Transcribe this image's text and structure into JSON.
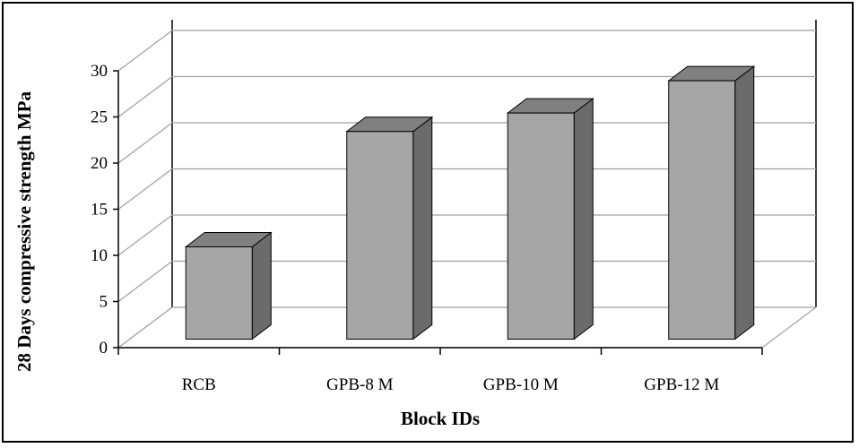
{
  "chart_data": {
    "type": "bar",
    "style": "3d-column",
    "categories": [
      "RCB",
      "GPB-8 M",
      "GPB-10 M",
      "GPB-12 M"
    ],
    "values": [
      10,
      22.5,
      24.5,
      28
    ],
    "xlabel": "Block IDs",
    "ylabel": "28 Days compressive strength MPa",
    "ylim": [
      0,
      30
    ],
    "yticks": [
      0,
      5,
      10,
      15,
      20,
      25,
      30
    ],
    "grid": true,
    "legend": "none",
    "colors": {
      "bar_front": "#a6a6a6",
      "bar_top": "#808080",
      "bar_side": "#6b6b6b",
      "grid": "#a0a0a0",
      "axis": "#000000"
    }
  }
}
